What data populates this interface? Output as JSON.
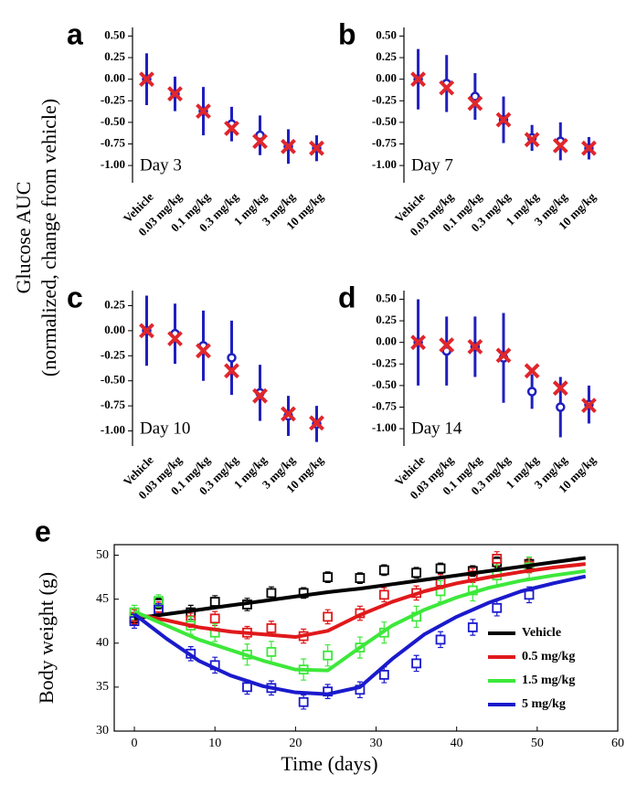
{
  "shared_ylabel": [
    "Glucose AUC",
    "(normalized, change from vehicle)"
  ],
  "chart_data": [
    {
      "type": "errorbar",
      "label": "a",
      "annotation": "Day 3",
      "categories": [
        "Vehicle",
        "0.03 mg/kg",
        "0.1 mg/kg",
        "0.3 mg/kg",
        "1 mg/kg",
        "3 mg/kg",
        "10 mg/kg"
      ],
      "series": [
        {
          "color": "#1f1fbf",
          "marker": "circle",
          "values": [
            0.0,
            -0.17,
            -0.37,
            -0.52,
            -0.65,
            -0.78,
            -0.8
          ],
          "errors": [
            0.3,
            0.2,
            0.28,
            0.2,
            0.23,
            0.2,
            0.15
          ]
        },
        {
          "color": "#e0262c",
          "marker": "x",
          "values": [
            0.0,
            -0.17,
            -0.37,
            -0.57,
            -0.72,
            -0.78,
            -0.8
          ]
        }
      ],
      "ylim": [
        -1.2,
        0.6
      ],
      "yticks": [
        {
          "value": 0.5,
          "label": "0.50"
        },
        {
          "value": 0.25,
          "label": "0.25"
        },
        {
          "value": 0,
          "label": "0.00"
        },
        {
          "value": -0.25,
          "label": "-0.25"
        },
        {
          "value": -0.5,
          "label": "-0.50"
        },
        {
          "value": -0.75,
          "label": "-0.75"
        },
        {
          "value": -1,
          "label": "-1.00"
        }
      ]
    },
    {
      "type": "errorbar",
      "label": "b",
      "annotation": "Day 7",
      "categories": [
        "Vehicle",
        "0.03 mg/kg",
        "0.1 mg/kg",
        "0.3 mg/kg",
        "1 mg/kg",
        "3 mg/kg",
        "10 mg/kg"
      ],
      "series": [
        {
          "color": "#1f1fbf",
          "marker": "circle",
          "values": [
            0.0,
            -0.05,
            -0.2,
            -0.47,
            -0.68,
            -0.72,
            -0.8
          ],
          "errors": [
            0.35,
            0.33,
            0.27,
            0.27,
            0.15,
            0.22,
            0.13
          ]
        },
        {
          "color": "#e0262c",
          "marker": "x",
          "values": [
            0.0,
            -0.1,
            -0.28,
            -0.47,
            -0.7,
            -0.77,
            -0.8
          ]
        }
      ],
      "ylim": [
        -1.2,
        0.6
      ],
      "yticks": [
        {
          "value": 0.5,
          "label": "0.50"
        },
        {
          "value": 0.25,
          "label": "0.25"
        },
        {
          "value": 0,
          "label": "0.00"
        },
        {
          "value": -0.25,
          "label": "-0.25"
        },
        {
          "value": -0.5,
          "label": "-0.50"
        },
        {
          "value": -0.75,
          "label": "-0.75"
        },
        {
          "value": -1,
          "label": "-1.00"
        }
      ]
    },
    {
      "type": "errorbar",
      "label": "c",
      "annotation": "Day 10",
      "categories": [
        "Vehicle",
        "0.03 mg/kg",
        "0.1 mg/kg",
        "0.3 mg/kg",
        "1 mg/kg",
        "3 mg/kg",
        "10 mg/kg"
      ],
      "series": [
        {
          "color": "#1f1fbf",
          "marker": "circle",
          "values": [
            0.0,
            -0.03,
            -0.15,
            -0.27,
            -0.62,
            -0.85,
            -0.93
          ],
          "errors": [
            0.35,
            0.3,
            0.35,
            0.37,
            0.28,
            0.2,
            0.18
          ]
        },
        {
          "color": "#e0262c",
          "marker": "x",
          "values": [
            0.0,
            -0.08,
            -0.2,
            -0.4,
            -0.65,
            -0.83,
            -0.92
          ]
        }
      ],
      "ylim": [
        -1.15,
        0.4
      ],
      "yticks": [
        {
          "value": 0.25,
          "label": "0.25"
        },
        {
          "value": 0,
          "label": "0.00"
        },
        {
          "value": -0.25,
          "label": "-0.25"
        },
        {
          "value": -0.5,
          "label": "-0.50"
        },
        {
          "value": -0.75,
          "label": "-0.75"
        },
        {
          "value": -1,
          "label": "-1.00"
        }
      ]
    },
    {
      "type": "errorbar",
      "label": "d",
      "annotation": "Day 14",
      "categories": [
        "Vehicle",
        "0.03 mg/kg",
        "0.1 mg/kg",
        "0.3 mg/kg",
        "1 mg/kg",
        "3 mg/kg",
        "10 mg/kg"
      ],
      "series": [
        {
          "color": "#1f1fbf",
          "marker": "circle",
          "values": [
            0.0,
            -0.1,
            -0.05,
            -0.18,
            -0.57,
            -0.75,
            -0.72
          ],
          "errors": [
            0.5,
            0.4,
            0.35,
            0.52,
            0.2,
            0.35,
            0.22
          ]
        },
        {
          "color": "#e0262c",
          "marker": "x",
          "values": [
            0.0,
            -0.03,
            -0.05,
            -0.15,
            -0.33,
            -0.53,
            -0.73
          ]
        }
      ],
      "ylim": [
        -1.2,
        0.6
      ],
      "yticks": [
        {
          "value": 0.5,
          "label": "0.50"
        },
        {
          "value": 0.25,
          "label": "0.25"
        },
        {
          "value": 0,
          "label": "0.00"
        },
        {
          "value": -0.25,
          "label": "-0.25"
        },
        {
          "value": -0.5,
          "label": "-0.50"
        },
        {
          "value": -0.75,
          "label": "-0.75"
        },
        {
          "value": -1,
          "label": "-1.00"
        }
      ]
    },
    {
      "type": "fitline",
      "label": "e",
      "xlabel": "Time (days)",
      "ylabel": "Body weight (g)",
      "x": [
        0,
        3,
        7,
        10,
        14,
        17,
        21,
        24,
        28,
        31,
        35,
        38,
        42,
        45,
        49
      ],
      "fit_x": [
        0,
        4,
        8,
        12,
        16,
        20,
        24,
        28,
        32,
        36,
        40,
        44,
        48,
        52,
        56
      ],
      "series": [
        {
          "name": "Vehicle",
          "color": "#000000",
          "values": [
            42.8,
            44.5,
            43.5,
            44.7,
            44.4,
            45.7,
            45.7,
            47.5,
            47.4,
            48.3,
            48.0,
            48.5,
            48.2,
            49.2,
            49.0
          ],
          "errors": [
            0.7,
            0.6,
            0.8,
            0.7,
            0.7,
            0.7,
            0.6,
            0.6,
            0.6,
            0.6,
            0.6,
            0.6,
            0.6,
            0.6,
            0.6
          ],
          "fit_values": [
            42.8,
            43.3,
            43.8,
            44.3,
            44.8,
            45.3,
            45.8,
            46.2,
            46.7,
            47.2,
            47.7,
            48.2,
            48.7,
            49.2,
            49.7
          ]
        },
        {
          "name": "0.5 mg/kg",
          "color": "#e0191b",
          "values": [
            43.0,
            44.0,
            42.6,
            42.8,
            41.2,
            41.7,
            40.8,
            43.0,
            43.4,
            45.5,
            45.7,
            47.0,
            47.7,
            49.6,
            48.8
          ],
          "errors": [
            0.8,
            0.7,
            0.8,
            0.8,
            0.7,
            0.8,
            0.8,
            0.8,
            0.8,
            0.8,
            0.8,
            0.8,
            0.8,
            0.8,
            0.8
          ],
          "fit_values": [
            43.3,
            42.6,
            41.8,
            41.3,
            41.0,
            40.7,
            41.4,
            43.2,
            44.7,
            45.9,
            46.8,
            47.5,
            48.1,
            48.6,
            49.0
          ]
        },
        {
          "name": "1.5 mg/kg",
          "color": "#3de83a",
          "values": [
            43.5,
            44.8,
            42.0,
            41.2,
            38.7,
            39.0,
            37.0,
            38.6,
            39.5,
            41.2,
            43.0,
            45.9,
            46.0,
            47.7,
            48.6
          ],
          "errors": [
            0.8,
            0.7,
            1.0,
            1.0,
            1.2,
            1.2,
            1.2,
            1.2,
            1.2,
            1.2,
            1.2,
            1.2,
            1.2,
            1.2,
            1.2
          ],
          "fit_values": [
            43.6,
            42.0,
            40.4,
            39.2,
            38.0,
            37.0,
            36.9,
            39.5,
            42.0,
            43.8,
            45.2,
            46.3,
            47.1,
            47.7,
            48.2
          ]
        },
        {
          "name": "5 mg/kg",
          "color": "#1a1acc",
          "values": [
            42.5,
            43.8,
            38.8,
            37.5,
            35.0,
            34.9,
            33.3,
            34.5,
            34.7,
            36.4,
            37.7,
            40.4,
            41.8,
            44.0,
            45.5
          ],
          "errors": [
            0.8,
            0.7,
            0.8,
            0.9,
            0.8,
            0.8,
            0.8,
            0.8,
            0.9,
            0.9,
            0.9,
            0.9,
            0.9,
            0.9,
            0.9
          ],
          "fit_values": [
            43.3,
            40.5,
            38.0,
            36.3,
            35.1,
            34.4,
            34.2,
            35.0,
            38.2,
            41.0,
            43.0,
            44.6,
            45.9,
            46.8,
            47.6
          ]
        }
      ],
      "xlim": [
        -2.5,
        60
      ],
      "xticks": [
        0,
        10,
        20,
        30,
        40,
        50,
        60
      ],
      "ylim": [
        30,
        51.2
      ],
      "yticks": [
        30,
        35,
        40,
        45,
        50
      ],
      "legend": "right"
    }
  ]
}
